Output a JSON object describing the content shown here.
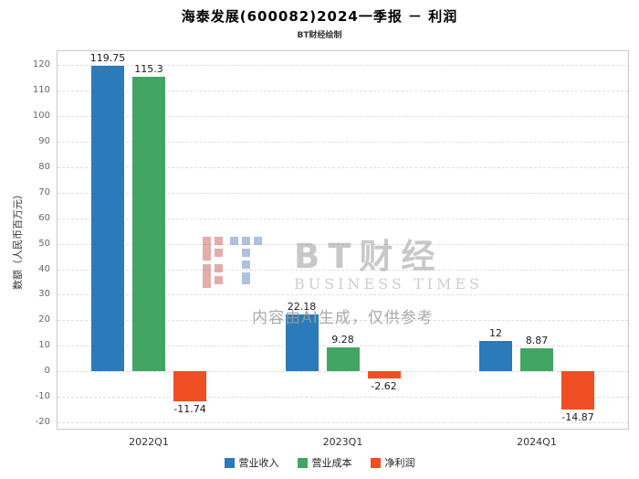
{
  "title": "海泰发展(600082)2024一季报 － 利润",
  "subtitle": "BT财经绘制",
  "watermark": {
    "logo_name": "bt-finance-logo",
    "brand": "BT财经",
    "brand_sub": "BUSINESS TIMES",
    "disclaimer": "内容由AI生成，仅供参考"
  },
  "chart_data": {
    "type": "bar",
    "categories": [
      "2022Q1",
      "2023Q1",
      "2024Q1"
    ],
    "series": [
      {
        "name": "营业收入",
        "color": "#2b7bba",
        "values": [
          119.75,
          22.18,
          12
        ]
      },
      {
        "name": "营业成本",
        "color": "#43a564",
        "values": [
          115.3,
          9.28,
          8.87
        ]
      },
      {
        "name": "净利润",
        "color": "#f04e23",
        "values": [
          -11.74,
          -2.62,
          -14.87
        ]
      }
    ],
    "title": "海泰发展(600082)2024一季报 － 利润",
    "xlabel": "",
    "ylabel": "数额（人民币百万元）",
    "ylim": [
      -20,
      120
    ],
    "ytick_step": 10,
    "grid": true,
    "legend_position": "bottom"
  }
}
